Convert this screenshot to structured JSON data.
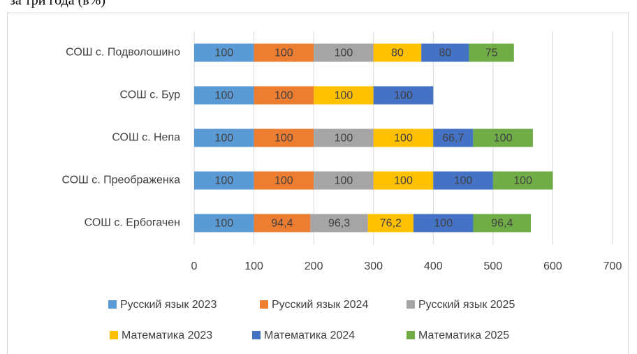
{
  "heading": "за три года (в%)",
  "chart_data": {
    "type": "stacked-bar-horizontal",
    "categories": [
      "СОШ с. Подволошино",
      "СОШ с. Бур",
      "СОШ с. Непа",
      "СОШ с. Преображенка",
      "СОШ с. Ербогачен"
    ],
    "series": [
      {
        "name": "Русский язык 2023",
        "color": "#5b9bd5",
        "values": [
          100,
          100,
          100,
          100,
          100
        ]
      },
      {
        "name": "Русский язык 2024",
        "color": "#ed7d31",
        "values": [
          100,
          100,
          100,
          100,
          94.4
        ],
        "value_labels": [
          "100",
          "100",
          "100",
          "100",
          "94,4"
        ]
      },
      {
        "name": "Русский язык 2025",
        "color": "#a5a5a5",
        "values": [
          100,
          null,
          100,
          100,
          96.3
        ],
        "value_labels": [
          "100",
          null,
          "100",
          "100",
          "96,3"
        ]
      },
      {
        "name": "Математика 2023",
        "color": "#ffc000",
        "values": [
          80,
          100,
          100,
          100,
          76.2
        ],
        "value_labels": [
          "80",
          "100",
          "100",
          "100",
          "76,2"
        ]
      },
      {
        "name": "Математика 2024",
        "color": "#4472c4",
        "values": [
          80,
          100,
          66.7,
          100,
          100
        ],
        "value_labels": [
          "80",
          "100",
          "66,7",
          "100",
          "100"
        ]
      },
      {
        "name": "Математика 2025",
        "color": "#70ad47",
        "values": [
          75,
          null,
          100,
          100,
          96.4
        ],
        "value_labels": [
          "75",
          null,
          "100",
          "100",
          "96,4"
        ]
      }
    ],
    "xlim": [
      0,
      700
    ],
    "xticks": [
      0,
      100,
      200,
      300,
      400,
      500,
      600,
      700
    ],
    "grid": true,
    "legend": "bottom"
  }
}
